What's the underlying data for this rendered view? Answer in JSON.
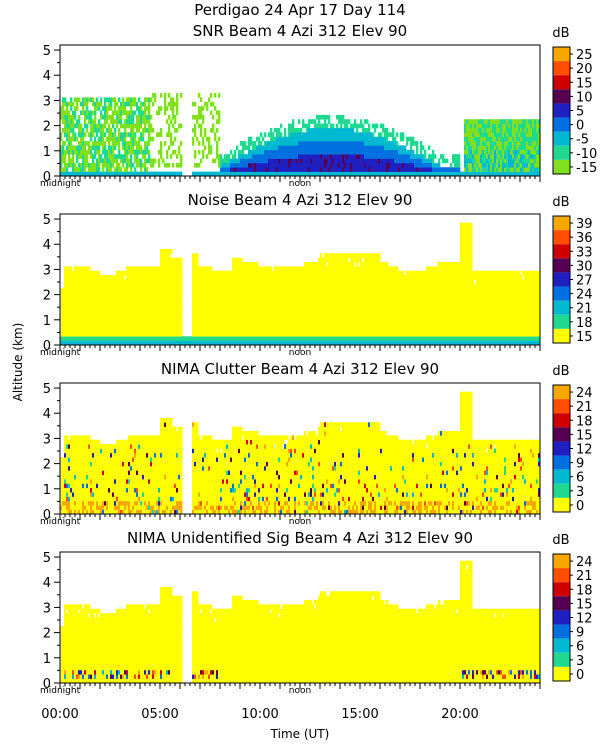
{
  "page_title": "Perdigao   24 Apr 17 Day 114",
  "y_axis_label": "Altitude (km)",
  "x_axis_label": "Time (UT)",
  "x_ticks": [
    "00:00",
    "05:00",
    "10:00",
    "15:00",
    "20:00"
  ],
  "inner_markers": [
    "midnight",
    "noon"
  ],
  "chart_data": [
    {
      "type": "heatmap",
      "title": "SNR Beam 4 Azi 312 Elev 90",
      "ylim": [
        0,
        5.2
      ],
      "yticks": [
        0,
        1,
        2,
        3,
        4,
        5
      ],
      "colorbar_unit": "dB",
      "colorbar_ticks": [
        25,
        20,
        15,
        10,
        5,
        0,
        -5,
        -10,
        -15
      ],
      "colorbar_colors": [
        "#f6a800",
        "#ff4e00",
        "#d00000",
        "#550050",
        "#2020c0",
        "#0070e0",
        "#00b8d0",
        "#20d890",
        "#80e020"
      ]
    },
    {
      "type": "heatmap",
      "title": "Noise Beam 4 Azi 312 Elev 90",
      "ylim": [
        0,
        5.2
      ],
      "yticks": [
        0,
        1,
        2,
        3,
        4,
        5
      ],
      "colorbar_unit": "dB",
      "colorbar_ticks": [
        39,
        36,
        33,
        30,
        27,
        24,
        21,
        18,
        15
      ],
      "colorbar_colors": [
        "#f6a800",
        "#ff4e00",
        "#d00000",
        "#550050",
        "#2020c0",
        "#0070e0",
        "#00b8d0",
        "#20d890",
        "#ffff00"
      ]
    },
    {
      "type": "heatmap",
      "title": "NIMA Clutter Beam 4 Azi 312 Elev 90",
      "ylim": [
        0,
        5.2
      ],
      "yticks": [
        0,
        1,
        2,
        3,
        4,
        5
      ],
      "colorbar_unit": "dB",
      "colorbar_ticks": [
        24,
        21,
        18,
        15,
        12,
        9,
        6,
        3,
        0
      ],
      "colorbar_colors": [
        "#f6a800",
        "#ff4e00",
        "#d00000",
        "#550050",
        "#2020c0",
        "#0070e0",
        "#00b8d0",
        "#20d890",
        "#ffff00"
      ]
    },
    {
      "type": "heatmap",
      "title": "NIMA Unidentified Sig Beam 4 Azi 312 Elev 90",
      "ylim": [
        0,
        5.2
      ],
      "yticks": [
        0,
        1,
        2,
        3,
        4,
        5
      ],
      "colorbar_unit": "dB",
      "colorbar_ticks": [
        24,
        21,
        18,
        15,
        12,
        9,
        6,
        3,
        0
      ],
      "colorbar_colors": [
        "#f6a800",
        "#ff4e00",
        "#d00000",
        "#550050",
        "#2020c0",
        "#0070e0",
        "#00b8d0",
        "#20d890",
        "#ffff00"
      ]
    }
  ]
}
